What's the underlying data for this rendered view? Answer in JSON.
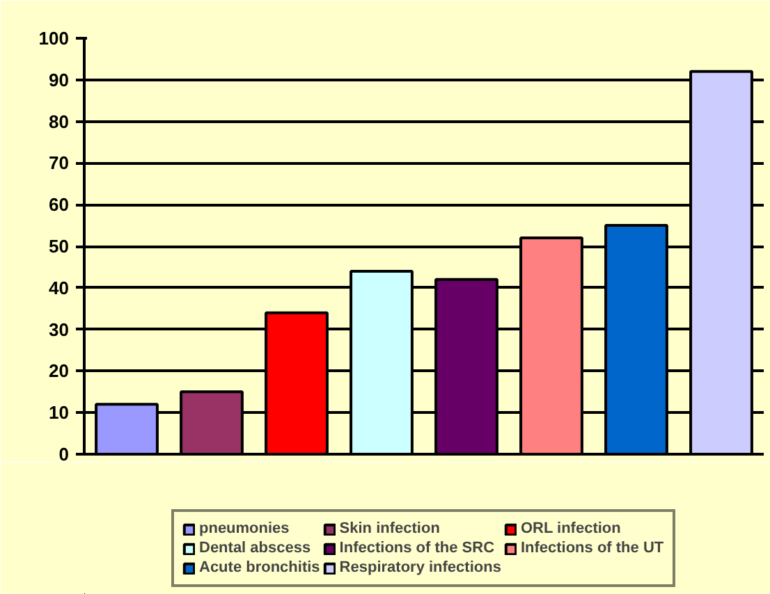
{
  "chart_data": {
    "type": "bar",
    "categories": [
      null,
      null,
      null,
      null,
      null,
      null,
      null,
      null
    ],
    "series": [
      {
        "name": "pneumonies",
        "color": "#9999ff",
        "values": [
          12,
          null,
          null,
          null,
          null,
          null,
          null,
          null
        ]
      },
      {
        "name": "Skin infection",
        "color": "#993366",
        "values": [
          null,
          15,
          null,
          null,
          null,
          null,
          null,
          null
        ]
      },
      {
        "name": "ORL infection",
        "color": "#ff0000",
        "values": [
          null,
          null,
          34,
          null,
          null,
          null,
          null,
          null
        ]
      },
      {
        "name": "Dental abscess",
        "color": "#ccffff",
        "values": [
          null,
          null,
          null,
          44,
          null,
          null,
          null,
          null
        ]
      },
      {
        "name": "Infections of the SRC",
        "color": "#660066",
        "values": [
          null,
          null,
          null,
          null,
          42,
          null,
          null,
          null
        ]
      },
      {
        "name": "Infections of the UT",
        "color": "#ff8080",
        "values": [
          null,
          null,
          null,
          null,
          null,
          52,
          null,
          null
        ]
      },
      {
        "name": "Acute bronchitis",
        "color": "#0066cc",
        "values": [
          null,
          null,
          null,
          null,
          null,
          null,
          55,
          null
        ]
      },
      {
        "name": "Respiratory infections",
        "color": "#ccccff",
        "values": [
          null,
          null,
          null,
          null,
          null,
          null,
          null,
          92
        ]
      }
    ],
    "ylim": [
      0,
      100
    ],
    "yticks": [
      0,
      10,
      20,
      30,
      40,
      50,
      60,
      70,
      80,
      90,
      100
    ],
    "grid": "y",
    "legend": "bottom"
  }
}
